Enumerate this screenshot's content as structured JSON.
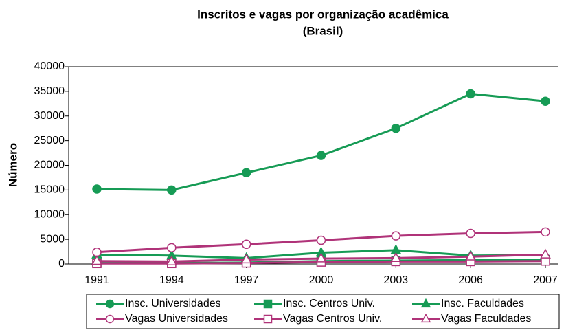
{
  "chart_data": {
    "type": "line",
    "title": "Inscritos e vagas por organização acadêmica",
    "subtitle": "(Brasil)",
    "y_label": "Número",
    "categories": [
      "1991",
      "1994",
      "1997",
      "2000",
      "2003",
      "2006",
      "2007"
    ],
    "ylim": [
      0,
      40000
    ],
    "yticks": [
      0,
      5000,
      10000,
      15000,
      20000,
      25000,
      30000,
      35000,
      40000
    ],
    "grid": false,
    "legend": "bottom",
    "series": [
      {
        "name": "Insc. Universidades",
        "color": "#169b55",
        "marker": "circle",
        "fill": "#169b55",
        "values": [
          15200,
          15000,
          18500,
          22000,
          27500,
          34500,
          33000
        ]
      },
      {
        "name": "Insc. Centros Univ.",
        "color": "#169b55",
        "marker": "square",
        "fill": "#169b55",
        "values": [
          200,
          200,
          300,
          600,
          700,
          800,
          900
        ]
      },
      {
        "name": "Insc. Faculdades",
        "color": "#169b55",
        "marker": "triangle",
        "fill": "#169b55",
        "values": [
          1900,
          1700,
          1200,
          2300,
          2800,
          1700,
          1800
        ]
      },
      {
        "name": "Vagas Universidades",
        "color": "#b03379",
        "marker": "circle",
        "fill": "#ffffff",
        "values": [
          2400,
          3300,
          4000,
          4800,
          5700,
          6200,
          6500
        ]
      },
      {
        "name": "Vagas Centros Univ.",
        "color": "#b03379",
        "marker": "square",
        "fill": "#ffffff",
        "values": [
          100,
          100,
          200,
          400,
          500,
          500,
          600
        ]
      },
      {
        "name": "Vagas Faculdades",
        "color": "#b03379",
        "marker": "triangle",
        "fill": "#ffffff",
        "values": [
          600,
          500,
          900,
          1100,
          1200,
          1500,
          1900
        ]
      }
    ]
  }
}
